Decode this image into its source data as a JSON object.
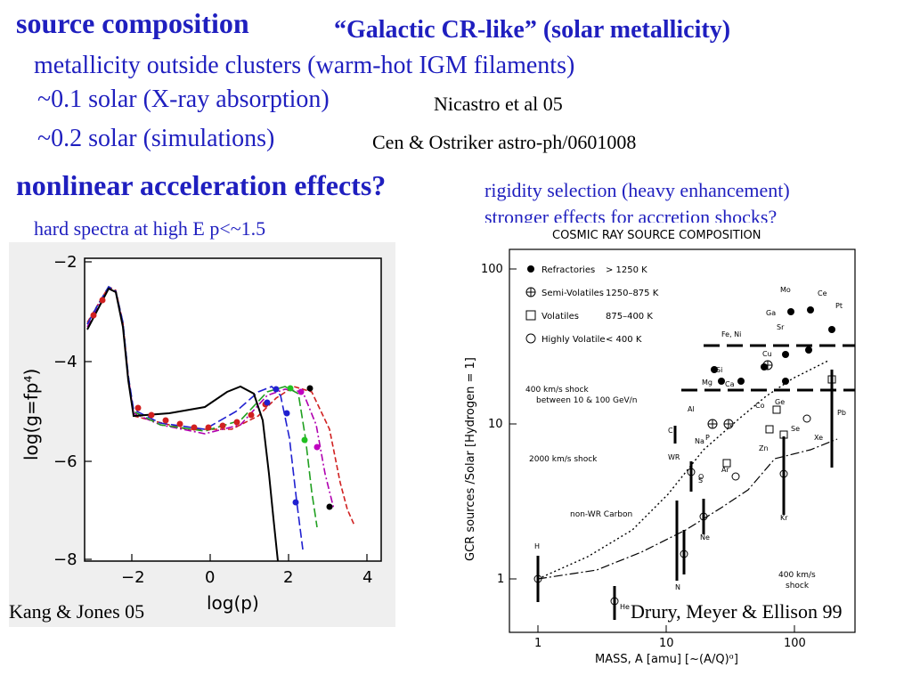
{
  "slide": {
    "heading1": "source composition",
    "heading1_note": "“Galactic CR-like” (solar metallicity)",
    "line_metallicity": "metallicity outside clusters (warm-hot IGM filaments)",
    "line_xray": "~0.1 solar (X-ray absorption)",
    "ref_xray": "Nicastro et al 05",
    "line_sim": "~0.2 solar (simulations)",
    "ref_sim": "Cen & Ostriker astro-ph/0601008",
    "heading2": "nonlinear acceleration effects?",
    "note_rigidity": "rigidity selection (heavy enhancement)",
    "note_accretion": "stronger effects for accretion shocks?",
    "note_hard": "hard spectra at high E   p<~1.5",
    "caption_left": "Kang & Jones 05",
    "caption_right": "Drury, Meyer & Ellison 99"
  },
  "left_plot": {
    "xlabel": "log(p)",
    "ylabel": "log(g=fp⁴)",
    "xticks": [
      "−2",
      "0",
      "2",
      "4"
    ],
    "yticks": [
      "−2",
      "−4",
      "−6",
      "−8"
    ]
  },
  "right_plot": {
    "title": "COSMIC RAY SOURCE COMPOSITION",
    "xlabel": "MASS, A [amu]  [~(A/Q)ᵅ]",
    "ylabel": "GCR sources /Solar [Hydrogen = 1]",
    "xticks": [
      "1",
      "10",
      "100"
    ],
    "yticks": [
      "100",
      "10",
      "1"
    ],
    "legend": [
      {
        "symbol": "filled",
        "name": "Refractories",
        "range": "> 1250 K"
      },
      {
        "symbol": "cross",
        "name": "Semi-Volatiles",
        "range": "1250–875 K"
      },
      {
        "symbol": "square",
        "name": "Volatiles",
        "range": "875–400 K"
      },
      {
        "symbol": "open",
        "name": "Highly Volatile",
        "range": "< 400 K"
      }
    ],
    "annotations": {
      "shock400": "400 km/s shock",
      "shock400b": "between 10 & 100 GeV/n",
      "shock2000": "2000 km/s shock",
      "nonwr": "non-WR Carbon",
      "shock400c": "400 km/s",
      "shock400d": "shock"
    }
  }
}
